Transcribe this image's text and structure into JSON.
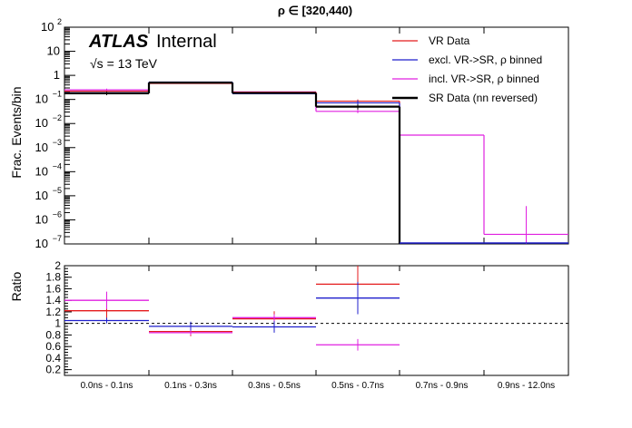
{
  "chart_data": [
    {
      "type": "histogram",
      "title": "ρ ∈ [320,440)",
      "ylabel": "Frac. Events/bin",
      "yscale": "log",
      "ylim": [
        1e-07,
        100
      ],
      "y_ticks": [
        {
          "v": 100.0,
          "m": "10",
          "e": "2"
        },
        {
          "v": 10.0,
          "m": "10",
          "e": ""
        },
        {
          "v": 1.0,
          "m": "1",
          "e": ""
        },
        {
          "v": 0.1,
          "m": "10",
          "e": "−1"
        },
        {
          "v": 0.01,
          "m": "10",
          "e": "−2"
        },
        {
          "v": 0.001,
          "m": "10",
          "e": "−3"
        },
        {
          "v": 0.0001,
          "m": "10",
          "e": "−4"
        },
        {
          "v": 1e-05,
          "m": "10",
          "e": "−5"
        },
        {
          "v": 1e-06,
          "m": "10",
          "e": "−6"
        },
        {
          "v": 1e-07,
          "m": "10",
          "e": "−7"
        }
      ],
      "categories": [
        "0.0ns - 0.1ns",
        "0.1ns - 0.3ns",
        "0.3ns - 0.5ns",
        "0.5ns - 0.7ns",
        "0.7ns - 0.9ns",
        "0.9ns - 12.0ns"
      ],
      "atlas_label": "ATLAS",
      "atlas_sub": "Internal",
      "energy_label": "√s = 13 TeV",
      "legend_position": "top-right",
      "series": [
        {
          "name": "VR Data",
          "color": "#e41a1c",
          "values": [
            0.22,
            0.46,
            0.2,
            0.085,
            0,
            0
          ],
          "errors": [
            0,
            0,
            0,
            0.015,
            0,
            0
          ]
        },
        {
          "name": "excl. VR->SR, ρ binned",
          "color": "#1f1fcc",
          "values": [
            0.19,
            0.53,
            0.175,
            0.072,
            0,
            0
          ],
          "errors": [
            0,
            0,
            0,
            0.02,
            0,
            0
          ]
        },
        {
          "name": "incl. VR->SR, ρ binned",
          "color": "#e020e0",
          "values": [
            0.25,
            0.51,
            0.205,
            0.032,
            0.0033,
            2.5e-07
          ],
          "errors": [
            0.03,
            0.02,
            0.01,
            0.005,
            0,
            3.5e-06
          ]
        },
        {
          "name": "SR Data (nn reversed)",
          "color": "#000000",
          "values": [
            0.18,
            0.5,
            0.185,
            0.05,
            0,
            0
          ],
          "errors": [
            0.03,
            0.02,
            0.01,
            0.012,
            0,
            0
          ]
        }
      ]
    },
    {
      "type": "ratio",
      "ylabel": "Ratio",
      "ylim": [
        0.1,
        2.0
      ],
      "y_ticks": [
        "0.2",
        "0.4",
        "0.6",
        "0.8",
        "1",
        "1.2",
        "1.4",
        "1.6",
        "1.8",
        "2"
      ],
      "reference_line": 1.0,
      "categories": [
        "0.0ns - 0.1ns",
        "0.1ns - 0.3ns",
        "0.3ns - 0.5ns",
        "0.5ns - 0.7ns",
        "0.7ns - 0.9ns",
        "0.9ns - 12.0ns"
      ],
      "series": [
        {
          "name": "VR Data",
          "color": "#e41a1c",
          "values": [
            1.22,
            0.86,
            1.08,
            1.68,
            null,
            null
          ],
          "errors": [
            0.2,
            0.08,
            0.13,
            0.4,
            null,
            null
          ]
        },
        {
          "name": "excl. VR->SR, ρ binned",
          "color": "#1f1fcc",
          "values": [
            1.05,
            0.95,
            0.94,
            1.44,
            null,
            null
          ],
          "errors": [
            0.05,
            0.08,
            0.1,
            0.28,
            null,
            null
          ]
        },
        {
          "name": "incl. VR->SR, ρ binned",
          "color": "#e020e0",
          "values": [
            1.4,
            0.84,
            1.1,
            0.63,
            null,
            null
          ],
          "errors": [
            0.15,
            0.04,
            0.06,
            0.1,
            null,
            null
          ]
        }
      ]
    }
  ]
}
